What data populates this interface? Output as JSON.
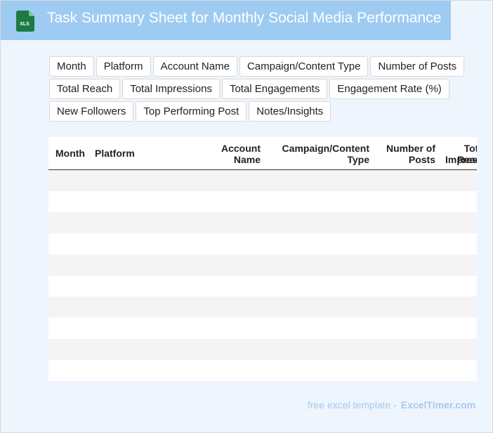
{
  "header": {
    "title": "Task Summary Sheet for Monthly Social Media Performance",
    "file_icon": "excel-file-icon",
    "file_icon_label": "XLS",
    "bar_color": "#9ecbf1"
  },
  "fields": [
    [
      "Month",
      "Platform",
      "Account Name",
      "Campaign/Content Type",
      "Number of Posts"
    ],
    [
      "Total Reach",
      "Total Impressions",
      "Total Engagements",
      "Engagement Rate (%)"
    ],
    [
      "New Followers",
      "Top Performing Post",
      "Notes/Insights"
    ]
  ],
  "table": {
    "columns": [
      {
        "line1": "Month",
        "line2": ""
      },
      {
        "line1": "Platform",
        "line2": ""
      },
      {
        "line1": "Account",
        "line2": "Name"
      },
      {
        "line1": "Campaign/Content",
        "line2": "Type"
      },
      {
        "line1": "Number of",
        "line2": "Posts"
      },
      {
        "line1": "Total",
        "line2": "Reach"
      },
      {
        "line1": "Impres",
        "line2": ""
      }
    ],
    "row_count": 10,
    "stripe_color": "#f4f4f4"
  },
  "footer": {
    "text": "free excel template -",
    "brand": "ExcelTimer.com"
  }
}
